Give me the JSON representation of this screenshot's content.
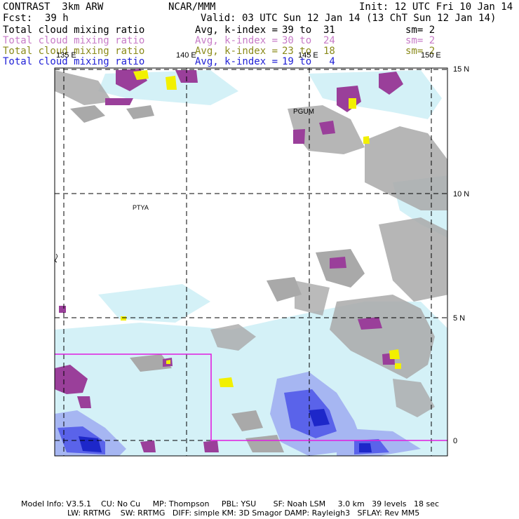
{
  "header": {
    "model": "CONTRAST  3km ARW",
    "center": "NCAR/MMM",
    "init": "Init: 12 UTC Fri 10 Jan 14",
    "fcst_label": "Fcst:",
    "fcst_value": "39 h",
    "valid": "Valid: 03 UTC Sun 12 Jan 14 (13 ChT Sun 12 Jan 14)"
  },
  "legend": [
    {
      "field": "Total cloud mixing ratio",
      "avg": "Avg, k-index =",
      "range": "39 to  31",
      "sm": "sm= 2",
      "color": "#000000"
    },
    {
      "field": "Total cloud mixing ratio",
      "avg": "Avg, k-index =",
      "range": "30 to  24",
      "sm": "sm= 2",
      "color": "#c77bc7"
    },
    {
      "field": "Total cloud mixing ratio",
      "avg": "Avg, k-index =",
      "range": "23 to  18",
      "sm": "sm= 2",
      "color": "#8a8a1a"
    },
    {
      "field": "Total cloud mixing ratio",
      "avg": "Avg, k-index =",
      "range": "19 to   4",
      "sm": "",
      "color": "#1f1fd6"
    }
  ],
  "map": {
    "lon_labels": [
      "135 E",
      "140 E",
      "145 E",
      "150 E"
    ],
    "lat_labels": [
      "15 N",
      "10 N",
      "5 N",
      "0"
    ],
    "stations": [
      "PGUM",
      "PTYA"
    ],
    "colors": {
      "gray": "#a9a9a9",
      "lightblue": "#d4f1f7",
      "midblue": "#a6b6f2",
      "blue": "#5a63ea",
      "darkblue": "#1d27c9",
      "purple": "#9a3f9a",
      "yellow": "#f2f000",
      "magenta": "#e01ee0"
    }
  },
  "footer": {
    "line1": "Model Info: V3.5.1    CU: No Cu     MP: Thompson     PBL: YSU       SF: Noah LSM     3.0 km   39 levels   18 sec",
    "line2": "LW: RRTMG    SW: RRTMG   DIFF: simple KM: 3D Smagor DAMP: Rayleigh3   SFLAY: Rev MM5"
  }
}
